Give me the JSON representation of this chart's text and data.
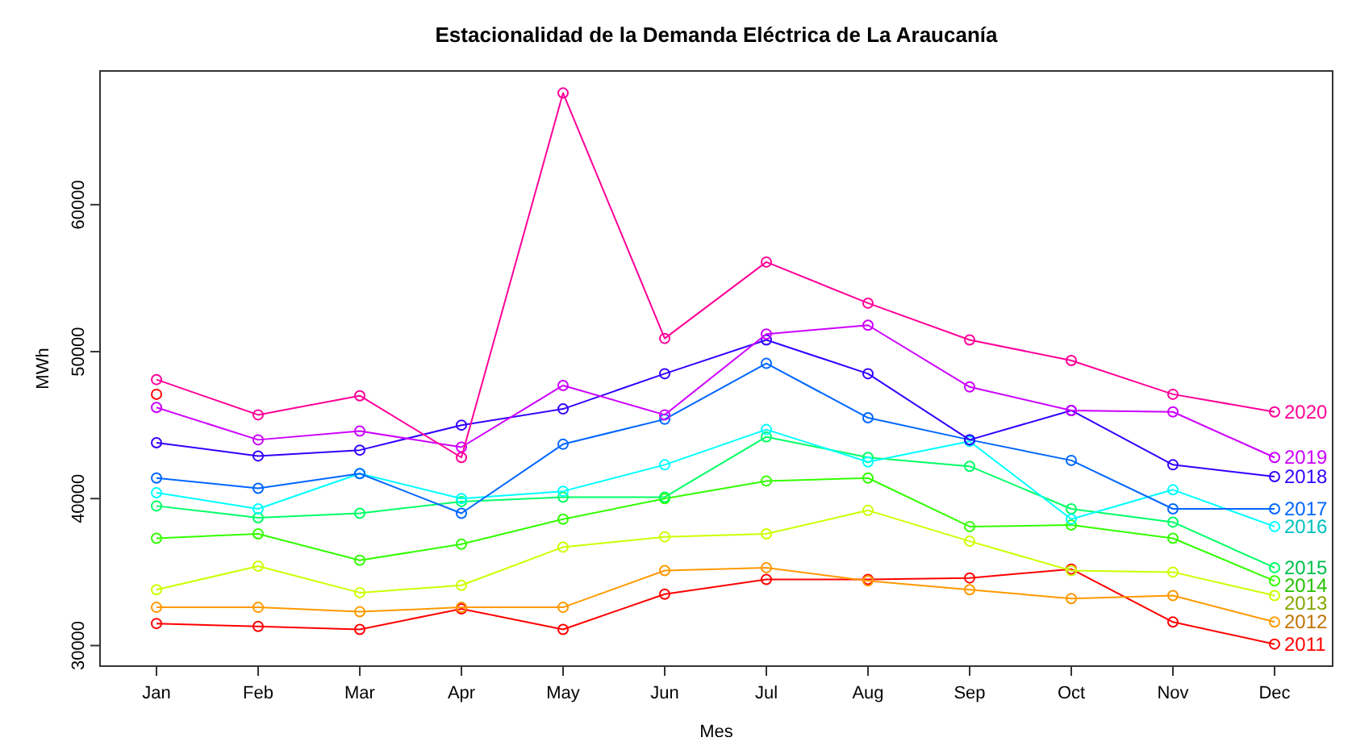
{
  "chart_data": {
    "type": "line",
    "title": "Estacionalidad de la Demanda Eléctrica de La Araucanía",
    "xlabel": "Mes",
    "ylabel": "MWh",
    "categories": [
      "Jan",
      "Feb",
      "Mar",
      "Apr",
      "May",
      "Jun",
      "Jul",
      "Aug",
      "Sep",
      "Oct",
      "Nov",
      "Dec"
    ],
    "ylim": [
      28600,
      69100
    ],
    "yticks": [
      30000,
      40000,
      50000,
      60000
    ],
    "grid": false,
    "marker": "circle",
    "line_style": "solid",
    "series": [
      {
        "name": "2011",
        "color": "#ff0000",
        "values": [
          31500,
          31300,
          31100,
          32500,
          31100,
          33500,
          34500,
          34500,
          34600,
          35200,
          31600,
          30100
        ]
      },
      {
        "name": "2012",
        "color": "#ff9900",
        "values": [
          32600,
          32600,
          32300,
          32600,
          32600,
          35100,
          35300,
          34400,
          33800,
          33200,
          33400,
          31600
        ]
      },
      {
        "name": "2013",
        "color": "#ccff00",
        "values": [
          33800,
          35400,
          33600,
          34100,
          36700,
          37400,
          37600,
          39200,
          37100,
          35100,
          35000,
          33400
        ]
      },
      {
        "name": "2014",
        "color": "#33ff00",
        "values": [
          37300,
          37600,
          35800,
          36900,
          38600,
          40000,
          41200,
          41400,
          38100,
          38200,
          37300,
          34400
        ]
      },
      {
        "name": "2015",
        "color": "#00ff66",
        "values": [
          39500,
          38700,
          39000,
          39800,
          40100,
          40100,
          44200,
          42800,
          42200,
          39300,
          38400,
          35300
        ]
      },
      {
        "name": "2016",
        "color": "#00ffff",
        "values": [
          40400,
          39300,
          41700,
          40000,
          40500,
          42300,
          44700,
          42500,
          43900,
          38600,
          40600,
          38100
        ]
      },
      {
        "name": "2017",
        "color": "#0066ff",
        "values": [
          41400,
          40700,
          41700,
          39000,
          43700,
          45400,
          49200,
          45500,
          44000,
          42600,
          39300,
          39300
        ]
      },
      {
        "name": "2018",
        "color": "#3300ff",
        "values": [
          43800,
          42900,
          43300,
          45000,
          46100,
          48500,
          50800,
          48500,
          44000,
          46000,
          42300,
          41500
        ]
      },
      {
        "name": "2019",
        "color": "#cc00ff",
        "values": [
          46200,
          44000,
          44600,
          43500,
          47700,
          45700,
          51200,
          51800,
          47600,
          46000,
          45900,
          42800
        ]
      },
      {
        "name": "2020",
        "color": "#ff0099",
        "values": [
          48100,
          45700,
          47000,
          42800,
          67600,
          50900,
          56100,
          53300,
          50800,
          49400,
          47100,
          45900
        ]
      },
      {
        "color": "#ff0000",
        "values": [
          47100,
          null,
          null,
          null,
          null,
          null,
          null,
          null,
          null,
          null,
          null,
          null
        ]
      }
    ]
  }
}
